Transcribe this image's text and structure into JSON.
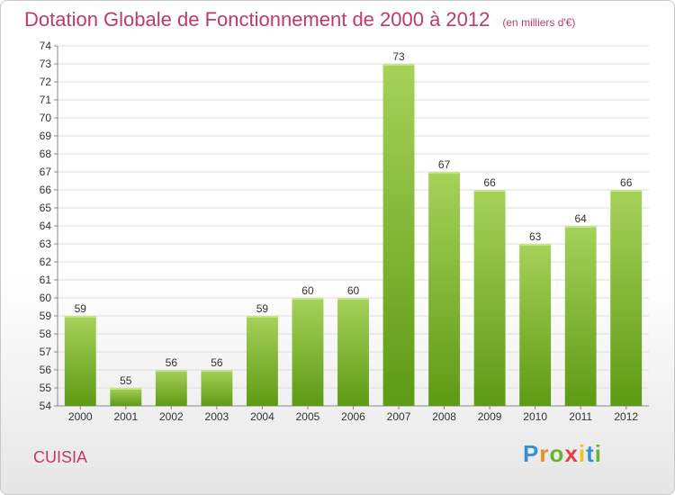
{
  "title": "Dotation Globale de Fonctionnement de 2000 à 2012",
  "unit": "(en milliers d'€)",
  "commune": "CUISIA",
  "logo": {
    "letters": [
      "P",
      "r",
      "o",
      "x",
      "i",
      "t",
      "i"
    ],
    "colors": [
      "#3a8fd0",
      "#f08a1c",
      "#6ab42e",
      "#e53f3f",
      "#f0c419",
      "#3a8fd0",
      "#6ab42e"
    ]
  },
  "colors": {
    "bar_light": "#a6d25a",
    "bar_dark": "#5e9a14",
    "title": "#c0396a"
  },
  "chart_data": {
    "type": "bar",
    "categories": [
      "2000",
      "2001",
      "2002",
      "2003",
      "2004",
      "2005",
      "2006",
      "2007",
      "2008",
      "2009",
      "2010",
      "2011",
      "2012"
    ],
    "values": [
      59,
      55,
      56,
      56,
      59,
      60,
      60,
      73,
      67,
      66,
      63,
      64,
      66
    ],
    "ylim": [
      54,
      74
    ],
    "yticks": [
      54,
      55,
      56,
      57,
      58,
      59,
      60,
      61,
      62,
      63,
      64,
      65,
      66,
      67,
      68,
      69,
      70,
      71,
      72,
      73,
      74
    ],
    "grid": true
  }
}
